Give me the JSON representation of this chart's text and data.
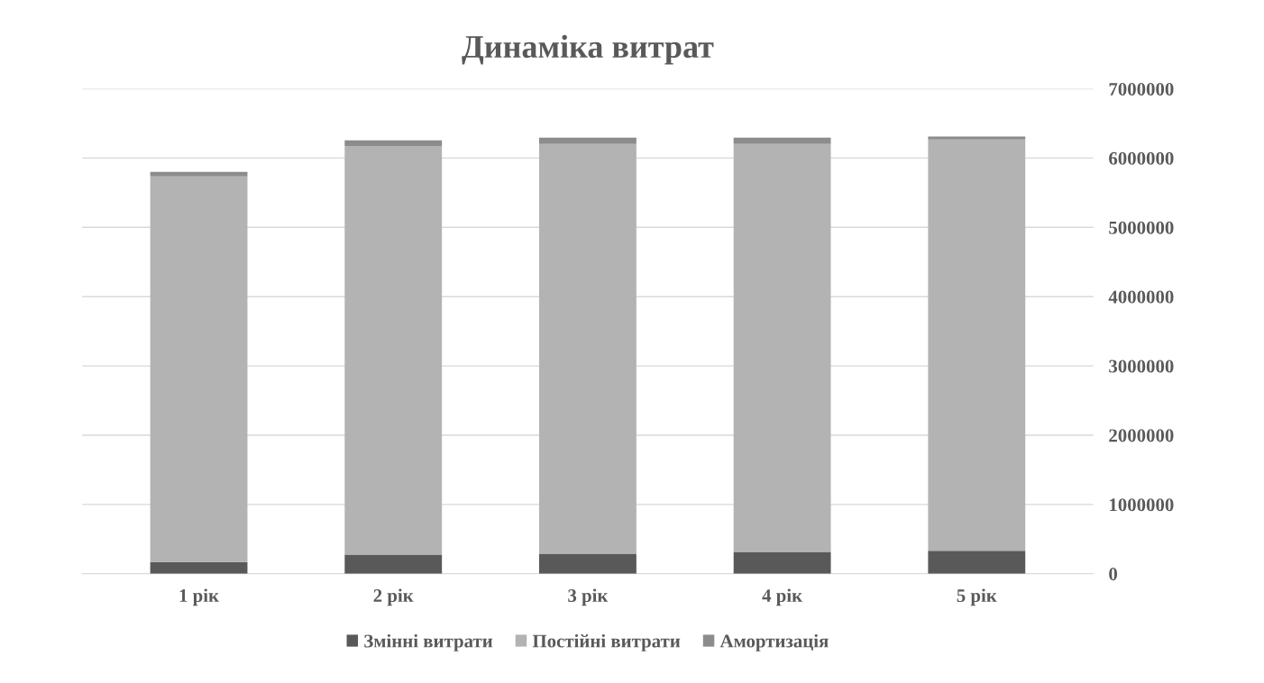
{
  "chart_data": {
    "type": "bar",
    "title": "Динаміка витрат",
    "stacked": true,
    "categories": [
      "1 рік",
      "2 рік",
      "3 рік",
      "4 рік",
      "5 рік"
    ],
    "series": [
      {
        "name": "Змінні витрати",
        "color": "#595959",
        "values": [
          170000,
          275000,
          290000,
          315000,
          330000
        ]
      },
      {
        "name": "Постійні витрати",
        "color": "#b3b3b3",
        "values": [
          5565000,
          5900000,
          5915000,
          5890000,
          5940000
        ]
      },
      {
        "name": "Амортизація",
        "color": "#8c8c8c",
        "values": [
          65000,
          80000,
          90000,
          90000,
          40000
        ]
      }
    ],
    "ylim": [
      0,
      7000000
    ],
    "yticks": [
      0,
      1000000,
      2000000,
      3000000,
      4000000,
      5000000,
      6000000,
      7000000
    ],
    "grid": "y",
    "legend": "bottom"
  }
}
